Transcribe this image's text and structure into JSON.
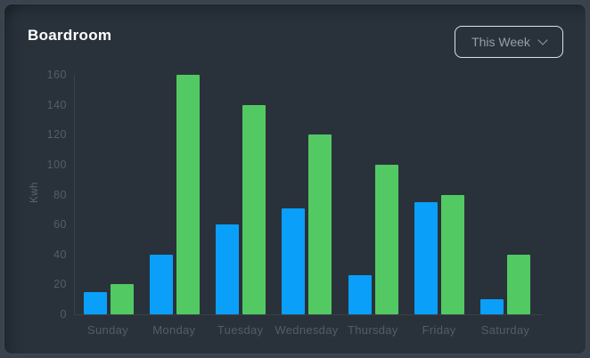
{
  "card": {
    "title": "Boardroom",
    "period_selector": {
      "label": "This Week"
    }
  },
  "chart_data": {
    "type": "bar",
    "title": "Boardroom",
    "categories": [
      "Sunday",
      "Monday",
      "Tuesday",
      "Wednesday",
      "Thursday",
      "Friday",
      "Saturday"
    ],
    "series": [
      {
        "name": "blue",
        "color": "#0a9ff9",
        "values": [
          15,
          40,
          60,
          71,
          26,
          75,
          10
        ]
      },
      {
        "name": "green",
        "color": "#53c963",
        "values": [
          20,
          160,
          140,
          120,
          100,
          80,
          40
        ]
      }
    ],
    "xlabel": "",
    "ylabel": "Kwh",
    "ylim": [
      0,
      160
    ],
    "ytick_step": 20,
    "grid": false,
    "legend": "none"
  },
  "colors": {
    "page_background": "#3a434d",
    "card_background": "#29323b",
    "title_text": "#ffffff",
    "axis_text": "#535e68",
    "button_border": "#dde1e4",
    "button_text": "#959fa9",
    "bar_blue": "#0a9ff9",
    "bar_green": "#53c963"
  }
}
